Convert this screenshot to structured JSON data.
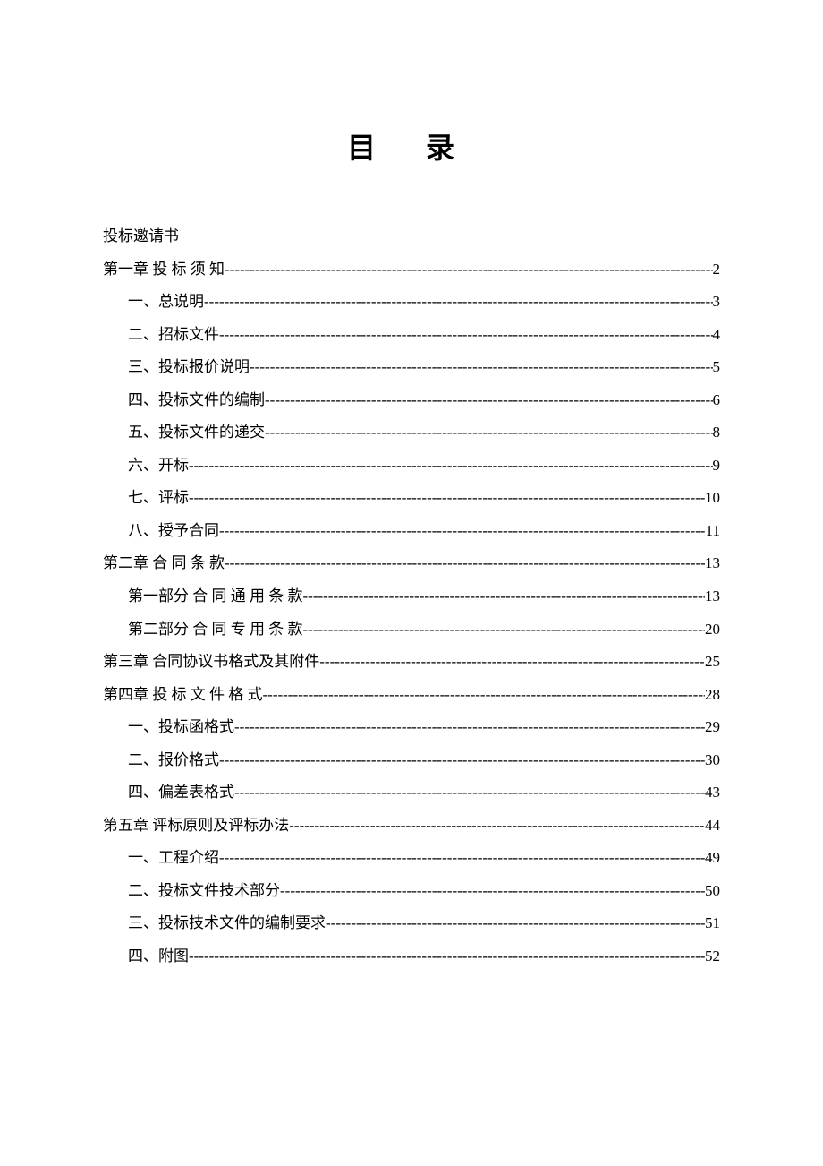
{
  "title": "目 录",
  "heading": "投标邀请书",
  "entries": [
    {
      "label": "第一章  投 标 须 知 ",
      "page": "2",
      "indent": 0
    },
    {
      "label": "一、总说明",
      "page": "3",
      "indent": 1
    },
    {
      "label": "二、招标文件",
      "page": "4",
      "indent": 1
    },
    {
      "label": "三、投标报价说明",
      "page": "5",
      "indent": 1
    },
    {
      "label": "四、投标文件的编制",
      "page": "6",
      "indent": 1
    },
    {
      "label": "五、投标文件的递交",
      "page": "8",
      "indent": 1
    },
    {
      "label": "六、开标",
      "page": "9",
      "indent": 1
    },
    {
      "label": "七、评标",
      "page": "10",
      "indent": 1
    },
    {
      "label": "八、授予合同",
      "page": "11",
      "indent": 1
    },
    {
      "label": "第二章  合 同 条 款 ",
      "page": "13",
      "indent": 0
    },
    {
      "label": "第一部分   合 同 通 用 条 款",
      "page": "13",
      "indent": 1
    },
    {
      "label": "第二部分  合 同 专 用 条 款",
      "page": "20",
      "indent": 1
    },
    {
      "label": "第三章   合同协议书格式及其附件",
      "page": "25",
      "indent": 0
    },
    {
      "label": "第四章  投 标 文 件 格 式",
      "page": "28",
      "indent": 0
    },
    {
      "label": "一、投标函格式",
      "page": "29",
      "indent": 1
    },
    {
      "label": "二、报价格式",
      "page": "30",
      "indent": 1
    },
    {
      "label": "四、偏差表格式",
      "page": "43",
      "indent": 1
    },
    {
      "label": "第五章   评标原则及评标办法",
      "page": "44",
      "indent": 0
    },
    {
      "label": "一、工程介绍",
      "page": "49",
      "indent": 1
    },
    {
      "label": "二、投标文件技术部分",
      "page": "50",
      "indent": 1
    },
    {
      "label": "三、投标技术文件的编制要求",
      "page": "51",
      "indent": 1
    },
    {
      "label": "四、附图",
      "page": "52",
      "indent": 1
    }
  ],
  "colors": {
    "background": "#ffffff",
    "text": "#000000"
  },
  "typography": {
    "title_fontsize": 32,
    "body_fontsize": 17,
    "font_family": "SimSun"
  }
}
